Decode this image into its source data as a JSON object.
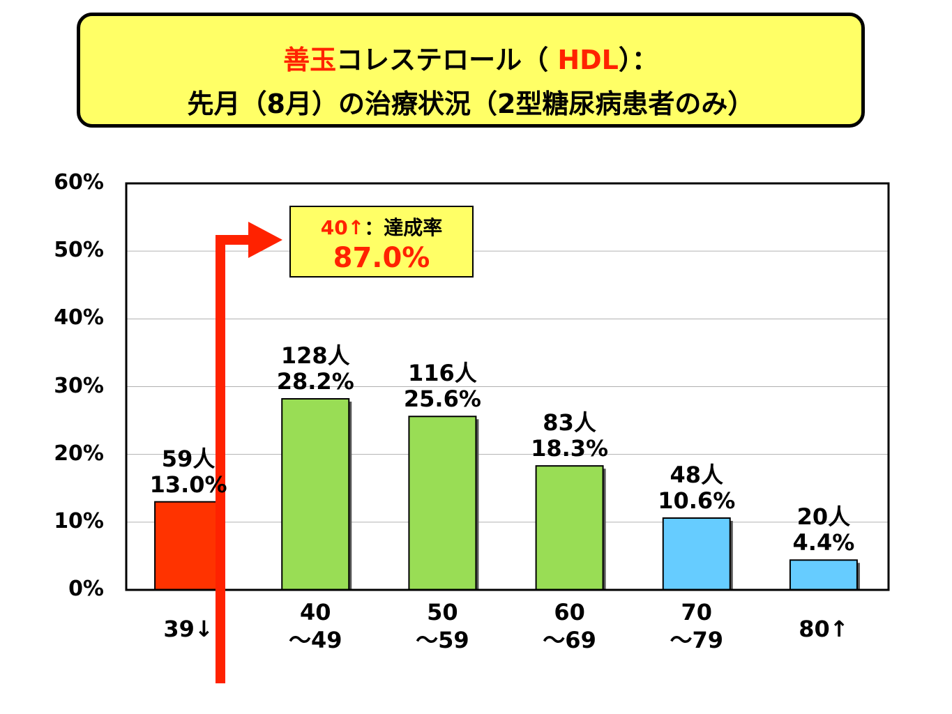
{
  "title": {
    "line1_red": "善玉",
    "line1_mid": "コレステロール（ ",
    "line1_red2": "HDL",
    "line1_end": "）：",
    "line2": "先月（8月）の治療状況（2型糖尿病患者のみ）"
  },
  "callout": {
    "threshold": "40↑",
    "label": "：達成率",
    "value": "87.0%"
  },
  "colors": {
    "red_bar": "#ff3300",
    "green_bar": "#99dd55",
    "blue_bar": "#66ccff",
    "arrow": "#ff2200",
    "title_bg": "#ffff66"
  },
  "chart_data": {
    "type": "bar",
    "categories": [
      [
        "39↓"
      ],
      [
        "40",
        "～49"
      ],
      [
        "50",
        "～59"
      ],
      [
        "60",
        "～69"
      ],
      [
        "70",
        "～79"
      ],
      [
        "80↑"
      ]
    ],
    "values": [
      13.0,
      28.2,
      25.6,
      18.3,
      10.6,
      4.4
    ],
    "counts": [
      "59人",
      "128人",
      "116人",
      "83人",
      "48人",
      "20人"
    ],
    "percent_labels": [
      "13.0%",
      "28.2%",
      "25.6%",
      "18.3%",
      "10.6%",
      "4.4%"
    ],
    "bar_colors": [
      "#ff3300",
      "#99dd55",
      "#99dd55",
      "#99dd55",
      "#66ccff",
      "#66ccff"
    ],
    "ylim": [
      0,
      60
    ],
    "yticks": [
      "0%",
      "10%",
      "20%",
      "30%",
      "40%",
      "50%",
      "60%"
    ],
    "grid": true
  }
}
